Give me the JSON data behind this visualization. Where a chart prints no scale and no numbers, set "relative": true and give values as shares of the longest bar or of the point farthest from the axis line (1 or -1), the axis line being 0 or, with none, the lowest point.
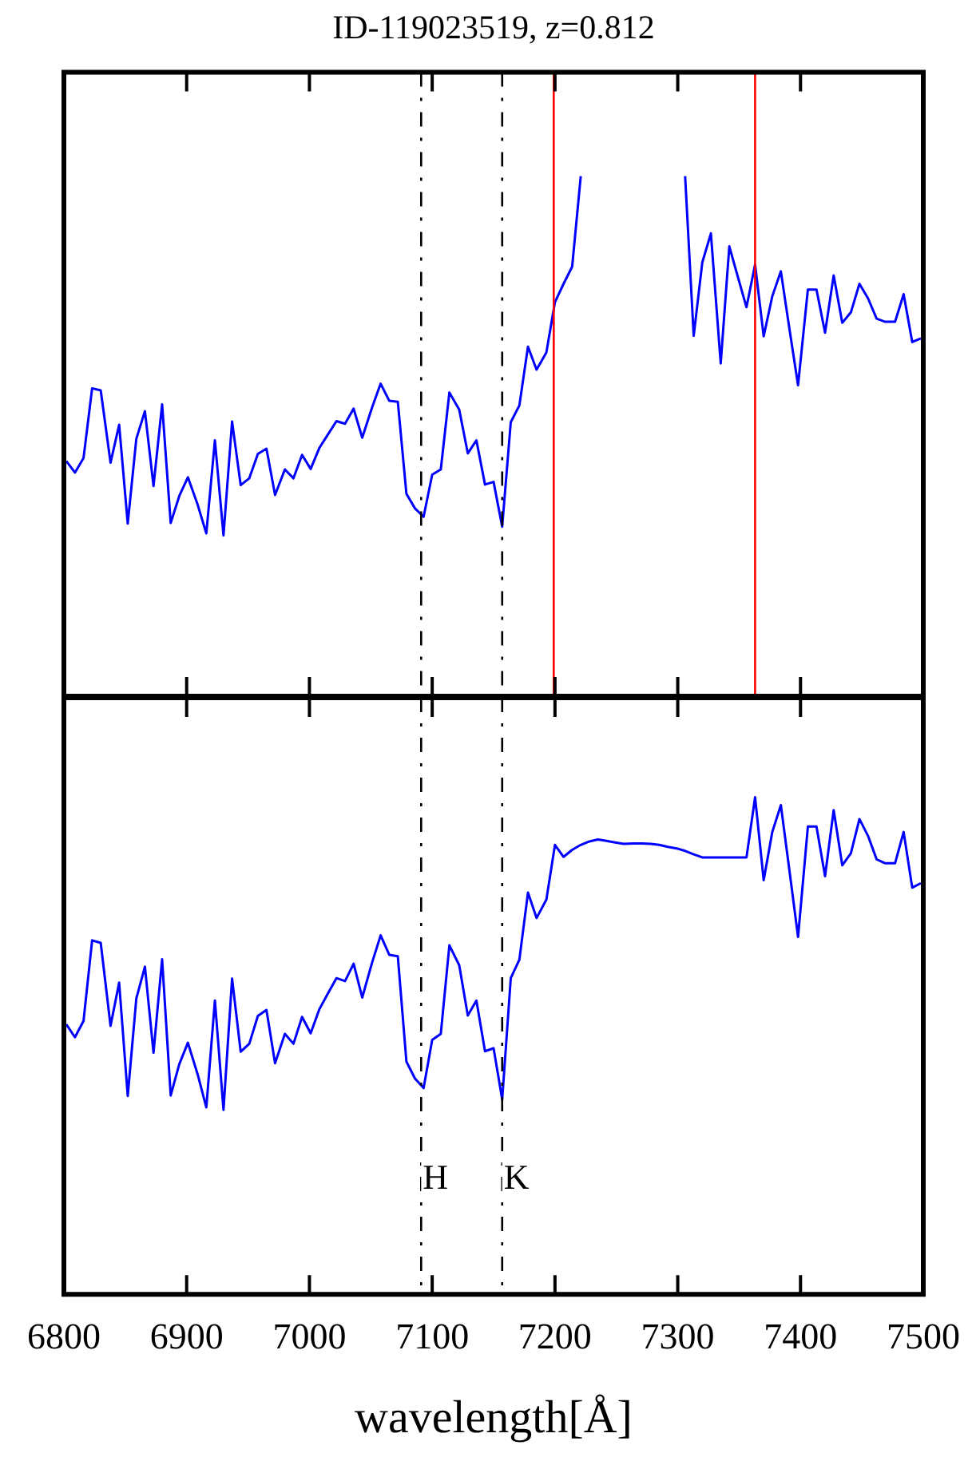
{
  "chart_data": [
    {
      "type": "line",
      "title": "ID-119023519, z=0.812",
      "relative": true,
      "marker": "none",
      "line_style": "solid",
      "tick_labels": false,
      "xlim": [
        6800,
        7500
      ],
      "xticks": [
        6800,
        6900,
        7000,
        7100,
        7200,
        7300,
        7400,
        7500
      ],
      "x": [
        6802,
        6809,
        6816,
        6823,
        6830,
        6838,
        6845,
        6852,
        6859,
        6866,
        6873,
        6880,
        6887,
        6894,
        6901,
        6909,
        6916,
        6923,
        6930,
        6937,
        6944,
        6951,
        6958,
        6965,
        6972,
        6980,
        6987,
        6994,
        7001,
        7008,
        7015,
        7022,
        7029,
        7036,
        7043,
        7051,
        7058,
        7065,
        7072,
        7079,
        7086,
        7093,
        7100,
        7107,
        7114,
        7122,
        7129,
        7136,
        7143,
        7150,
        7157,
        7164,
        7171,
        7178,
        7185,
        7193,
        7200,
        7207,
        7214,
        7221,
        7228,
        7235,
        7242,
        7249,
        7256,
        7264,
        7271,
        7278,
        7285,
        7292,
        7299,
        7306,
        7313,
        7320,
        7327,
        7335,
        7342,
        7349,
        7356,
        7363,
        7370,
        7377,
        7384,
        7391,
        7398,
        7406,
        7413,
        7420,
        7427,
        7434,
        7441,
        7448,
        7455,
        7462,
        7469,
        7477,
        7484,
        7491,
        7498
      ],
      "series": [
        {
          "color": "#0000ff",
          "values": [
            0.452,
            0.43,
            0.458,
            0.592,
            0.588,
            0.449,
            0.522,
            0.332,
            0.495,
            0.548,
            0.404,
            0.561,
            0.333,
            0.385,
            0.421,
            0.368,
            0.313,
            0.492,
            0.309,
            0.528,
            0.406,
            0.419,
            0.466,
            0.476,
            0.387,
            0.436,
            0.419,
            0.464,
            0.437,
            0.477,
            0.503,
            0.529,
            0.524,
            0.553,
            0.497,
            0.555,
            0.601,
            0.568,
            0.566,
            0.389,
            0.361,
            0.345,
            0.426,
            0.436,
            0.584,
            0.551,
            0.467,
            0.492,
            0.407,
            0.412,
            0.326,
            0.527,
            0.559,
            0.672,
            0.628,
            0.661,
            0.758,
            0.793,
            0.826,
            1,
            null,
            null,
            null,
            null,
            null,
            null,
            null,
            null,
            null,
            null,
            null,
            1,
            0.693,
            0.834,
            0.89,
            0.64,
            0.865,
            0.806,
            0.748,
            0.83,
            0.692,
            0.769,
            0.817,
            0.706,
            0.598,
            0.782,
            0.782,
            0.699,
            0.809,
            0.718,
            0.738,
            0.793,
            0.765,
            0.726,
            0.72,
            0.72,
            0.773,
            0.681,
            0.688
          ]
        }
      ],
      "ref_lines": [
        {
          "axis": "x",
          "value": 7091,
          "label": null,
          "color": "#000000",
          "line_style": "dashed"
        },
        {
          "axis": "x",
          "value": 7157,
          "label": null,
          "color": "#000000",
          "line_style": "dashed"
        },
        {
          "axis": "x",
          "value": 7199,
          "label": null,
          "color": "#ff0000",
          "line_style": "solid"
        },
        {
          "axis": "x",
          "value": 7363,
          "label": null,
          "color": "#ff0000",
          "line_style": "solid"
        }
      ]
    },
    {
      "type": "line",
      "xlabel": "wavelength[Å]",
      "relative": true,
      "marker": "none",
      "line_style": "solid",
      "xlim": [
        6800,
        7500
      ],
      "xticks": [
        6800,
        6900,
        7000,
        7100,
        7200,
        7300,
        7400,
        7500
      ],
      "x": [
        6802,
        6809,
        6816,
        6823,
        6830,
        6838,
        6845,
        6852,
        6859,
        6866,
        6873,
        6880,
        6887,
        6894,
        6901,
        6909,
        6916,
        6923,
        6930,
        6937,
        6944,
        6951,
        6958,
        6965,
        6972,
        6980,
        6987,
        6994,
        7001,
        7008,
        7015,
        7022,
        7029,
        7036,
        7043,
        7051,
        7058,
        7065,
        7072,
        7079,
        7086,
        7093,
        7100,
        7107,
        7114,
        7122,
        7129,
        7136,
        7143,
        7150,
        7157,
        7164,
        7171,
        7178,
        7185,
        7193,
        7200,
        7207,
        7214,
        7221,
        7228,
        7235,
        7242,
        7249,
        7256,
        7264,
        7271,
        7278,
        7285,
        7292,
        7299,
        7306,
        7313,
        7320,
        7327,
        7335,
        7342,
        7349,
        7356,
        7363,
        7370,
        7377,
        7384,
        7391,
        7398,
        7406,
        7413,
        7420,
        7427,
        7434,
        7441,
        7448,
        7455,
        7462,
        7469,
        7477,
        7484,
        7491,
        7498
      ],
      "series": [
        {
          "color": "#0000ff",
          "values": [
            0.543,
            0.517,
            0.55,
            0.712,
            0.707,
            0.54,
            0.627,
            0.399,
            0.595,
            0.659,
            0.486,
            0.674,
            0.4,
            0.463,
            0.506,
            0.442,
            0.376,
            0.591,
            0.371,
            0.635,
            0.488,
            0.504,
            0.56,
            0.572,
            0.465,
            0.524,
            0.504,
            0.558,
            0.525,
            0.573,
            0.605,
            0.636,
            0.63,
            0.665,
            0.597,
            0.667,
            0.722,
            0.683,
            0.68,
            0.468,
            0.434,
            0.415,
            0.512,
            0.524,
            0.702,
            0.662,
            0.561,
            0.591,
            0.489,
            0.495,
            0.392,
            0.636,
            0.673,
            0.808,
            0.757,
            0.794,
            0.904,
            0.88,
            0.894,
            0.904,
            0.911,
            0.915,
            0.912,
            0.909,
            0.906,
            0.907,
            0.907,
            0.906,
            0.904,
            0.9,
            0.897,
            0.892,
            0.885,
            0.879,
            0.879,
            0.879,
            0.879,
            0.879,
            0.879,
            1,
            0.833,
            0.93,
            0.984,
            0.852,
            0.719,
            0.941,
            0.941,
            0.841,
            0.974,
            0.863,
            0.887,
            0.956,
            0.922,
            0.875,
            0.867,
            0.867,
            0.93,
            0.818,
            0.827
          ]
        }
      ],
      "ref_lines": [
        {
          "axis": "x",
          "value": 7091,
          "label": "H",
          "color": "#000000",
          "line_style": "dashed"
        },
        {
          "axis": "x",
          "value": 7157,
          "label": "K",
          "color": "#000000",
          "line_style": "dashed"
        }
      ]
    }
  ]
}
